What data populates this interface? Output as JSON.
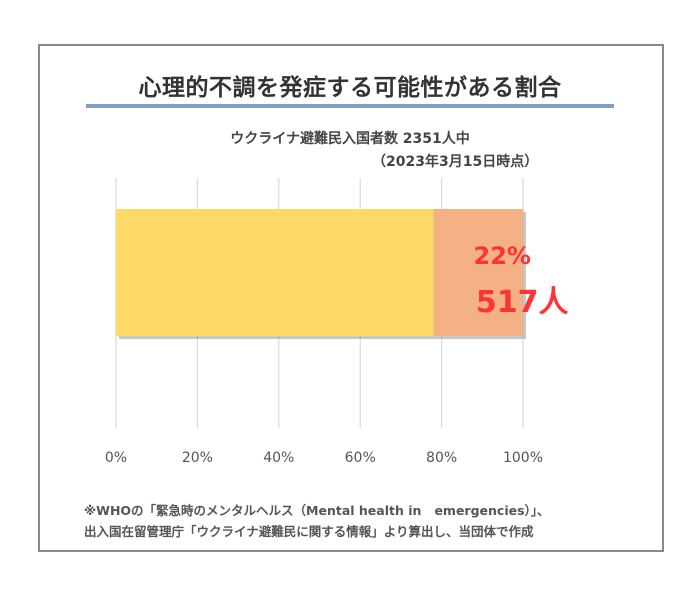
{
  "title": "心理的不調を発症する可能性がある割合",
  "subtitle_line1": "ウクライナ避難民入国者数 2351人中",
  "subtitle_line2": "（2023年3月15日時点）",
  "chart_data": {
    "type": "bar",
    "orientation": "horizontal",
    "stacked": true,
    "categories": [
      ""
    ],
    "series": [
      {
        "values": [
          78
        ],
        "color": "#ffd966"
      },
      {
        "values": [
          22
        ],
        "color": "#f4b183"
      }
    ],
    "data_labels": [
      "22%",
      "517人"
    ],
    "data_label_color": "#ff3333",
    "xlim": [
      0,
      100
    ],
    "xticks": [
      "0%",
      "20%",
      "40%",
      "60%",
      "80%",
      "100%"
    ],
    "grid": true,
    "legend": "none"
  },
  "footnote_line1": "※WHOの「緊急時のメンタルヘルス（Mental health in   emergencies）」、",
  "footnote_line2": "出入国在留管理庁「ウクライナ避難民に関する情報」より算出し、当団体で作成"
}
